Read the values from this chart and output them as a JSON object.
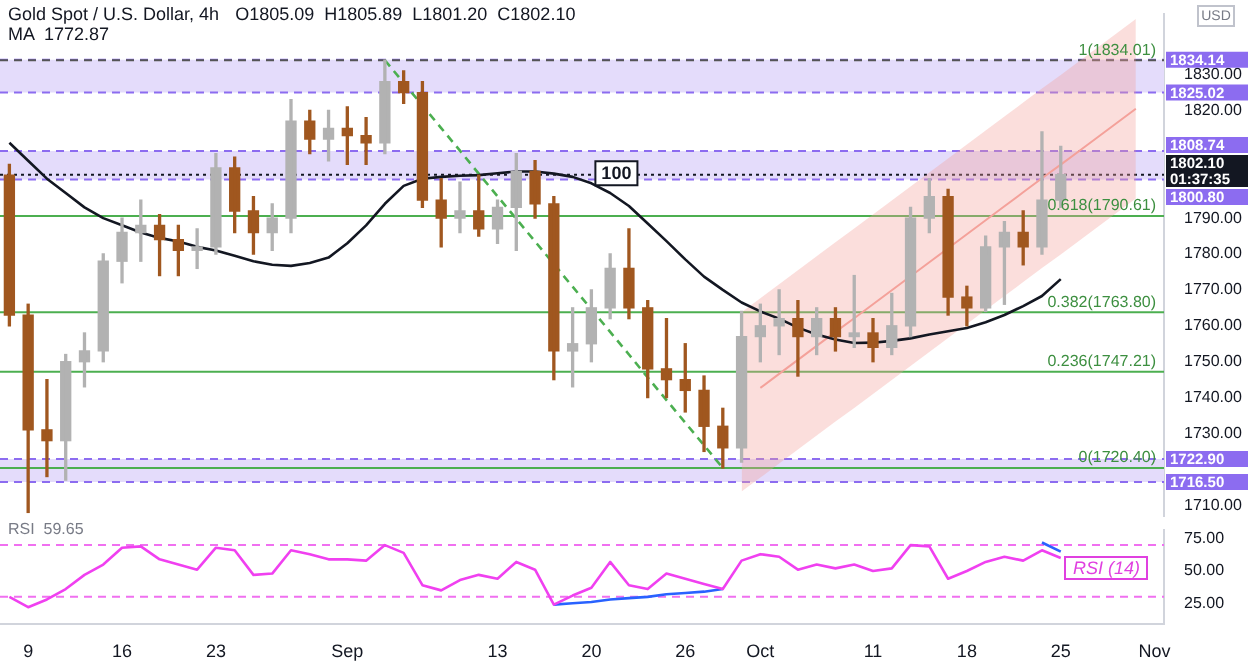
{
  "chart_data": [
    {
      "type": "candlestick",
      "title": "Gold Spot / U.S. Dollar, 4h",
      "subtitle": "O1805.09  H1805.89  L1801.20  C1802.10",
      "ylabel": "USD",
      "annotations": [
        "MA  1772.87",
        {
          "text": "1(1834.01)",
          "y": 1834.01
        },
        {
          "text": "0.618(1790.61)",
          "y": 1790.61
        },
        {
          "text": "0.382(1763.80)",
          "y": 1763.8
        },
        {
          "text": "0.236(1747.21)",
          "y": 1747.21
        },
        {
          "text": "0(1720.40)",
          "y": 1720.4
        }
      ],
      "categories": [
        null,
        "9",
        null,
        null,
        null,
        null,
        "16",
        null,
        null,
        null,
        null,
        "23",
        null,
        null,
        null,
        null,
        null,
        null,
        "Sep",
        null,
        null,
        null,
        null,
        null,
        null,
        null,
        "13",
        null,
        null,
        null,
        null,
        "20",
        null,
        null,
        null,
        null,
        "26",
        null,
        null,
        null,
        "Oct",
        null,
        null,
        null,
        null,
        null,
        "11",
        null,
        null,
        null,
        null,
        "18",
        null,
        null,
        null,
        null,
        "25",
        null,
        null,
        null,
        null,
        "Nov"
      ],
      "ohlc": [
        [
          1802,
          1805,
          1760,
          1763
        ],
        [
          1763,
          1766,
          1708,
          1731
        ],
        [
          1731,
          1745,
          1718,
          1728
        ],
        [
          1728,
          1752,
          1717,
          1750
        ],
        [
          1750,
          1758,
          1743,
          1753
        ],
        [
          1753,
          1780,
          1750,
          1778
        ],
        [
          1778,
          1790,
          1772,
          1786
        ],
        [
          1786,
          1795,
          1778,
          1788
        ],
        [
          1788,
          1791,
          1774,
          1784
        ],
        [
          1784,
          1788,
          1774,
          1781
        ],
        [
          1781,
          1787,
          1776,
          1782
        ],
        [
          1782,
          1808,
          1780,
          1804
        ],
        [
          1804,
          1807,
          1786,
          1792
        ],
        [
          1792,
          1796,
          1780,
          1786
        ],
        [
          1786,
          1794,
          1781,
          1790
        ],
        [
          1790,
          1823,
          1786,
          1817
        ],
        [
          1817,
          1820,
          1808,
          1812
        ],
        [
          1812,
          1820,
          1806,
          1815
        ],
        [
          1815,
          1821,
          1805,
          1813
        ],
        [
          1813,
          1818,
          1805,
          1811
        ],
        [
          1811,
          1834,
          1808,
          1828
        ],
        [
          1828,
          1831,
          1822,
          1825
        ],
        [
          1825,
          1828,
          1793,
          1795
        ],
        [
          1795,
          1801,
          1782,
          1790
        ],
        [
          1790,
          1800,
          1786,
          1792
        ],
        [
          1792,
          1802,
          1785,
          1787
        ],
        [
          1787,
          1795,
          1783,
          1793
        ],
        [
          1793,
          1808,
          1781,
          1803
        ],
        [
          1803,
          1806,
          1790,
          1794
        ],
        [
          1794,
          1796,
          1745,
          1753
        ],
        [
          1753,
          1765,
          1743,
          1755
        ],
        [
          1755,
          1770,
          1750,
          1765
        ],
        [
          1765,
          1780,
          1762,
          1776
        ],
        [
          1776,
          1787,
          1762,
          1765
        ],
        [
          1765,
          1767,
          1740,
          1748
        ],
        [
          1748,
          1762,
          1740,
          1745
        ],
        [
          1745,
          1755,
          1736,
          1742
        ],
        [
          1742,
          1746,
          1725,
          1732
        ],
        [
          1732,
          1737,
          1720.4,
          1726
        ],
        [
          1726,
          1764,
          1722,
          1757
        ],
        [
          1757,
          1766,
          1750,
          1760
        ],
        [
          1760,
          1770,
          1752,
          1762
        ],
        [
          1762,
          1767,
          1746,
          1757
        ],
        [
          1757,
          1765,
          1752,
          1762
        ],
        [
          1762,
          1765,
          1753,
          1757
        ],
        [
          1757,
          1774,
          1754,
          1758
        ],
        [
          1758,
          1762,
          1750,
          1754
        ],
        [
          1754,
          1769,
          1752,
          1760
        ],
        [
          1760,
          1793,
          1757,
          1790
        ],
        [
          1790,
          1801,
          1786,
          1796
        ],
        [
          1796,
          1798,
          1763,
          1768
        ],
        [
          1768,
          1771,
          1760,
          1765
        ],
        [
          1765,
          1785,
          1764,
          1782
        ],
        [
          1782,
          1789,
          1766,
          1786
        ],
        [
          1786,
          1792,
          1777,
          1782
        ],
        [
          1782,
          1814,
          1780,
          1795
        ],
        [
          1795,
          1810,
          1793,
          1802.1
        ],
        null,
        null,
        null,
        null,
        null
      ],
      "colors": [
        "#a0571f",
        "#a0571f",
        "#a0571f",
        "#b2b2b2",
        "#b2b2b2",
        "#b2b2b2",
        "#b2b2b2",
        "#b2b2b2",
        "#a0571f",
        "#a0571f",
        "#b2b2b2",
        "#b2b2b2",
        "#a0571f",
        "#a0571f",
        "#b2b2b2",
        "#b2b2b2",
        "#a0571f",
        "#b2b2b2",
        "#a0571f",
        "#a0571f",
        "#b2b2b2",
        "#a0571f",
        "#a0571f",
        "#a0571f",
        "#b2b2b2",
        "#a0571f",
        "#b2b2b2",
        "#b2b2b2",
        "#a0571f",
        "#a0571f",
        "#b2b2b2",
        "#b2b2b2",
        "#b2b2b2",
        "#a0571f",
        "#a0571f",
        "#a0571f",
        "#a0571f",
        "#a0571f",
        "#a0571f",
        "#b2b2b2",
        "#b2b2b2",
        "#b2b2b2",
        "#a0571f",
        "#b2b2b2",
        "#a0571f",
        "#b2b2b2",
        "#a0571f",
        "#b2b2b2",
        "#b2b2b2",
        "#b2b2b2",
        "#a0571f",
        "#a0571f",
        "#b2b2b2",
        "#b2b2b2",
        "#a0571f",
        "#b2b2b2",
        "#b2b2b2",
        null,
        null,
        null,
        null,
        null
      ],
      "series": [
        {
          "type": "line",
          "name": "100",
          "color": "#131722",
          "values": [
            1811,
            1806,
            1801,
            1797,
            1793,
            1790,
            1788,
            1786,
            1784.5,
            1783.5,
            1782,
            1781,
            1779.5,
            1778,
            1777,
            1776.7,
            1777.5,
            1779,
            1783,
            1788,
            1794,
            1799,
            1801,
            1801.5,
            1801.8,
            1802,
            1802.5,
            1803,
            1803,
            1802.4,
            1801.5,
            1799.7,
            1797,
            1793.4,
            1788.5,
            1783.6,
            1778.5,
            1773.7,
            1770,
            1766.5,
            1764,
            1762,
            1759.5,
            1757.6,
            1756.2,
            1755.2,
            1755.3,
            1755.8,
            1756.5,
            1757.6,
            1758.5,
            1759.4,
            1761,
            1763,
            1765.5,
            1768.3,
            1773,
            null,
            null,
            null,
            null,
            null
          ]
        },
        {
          "type": "line",
          "color": "#4caf50",
          "line_style": "dashed",
          "values": [
            null,
            null,
            null,
            null,
            null,
            null,
            null,
            null,
            null,
            null,
            null,
            null,
            null,
            null,
            null,
            null,
            null,
            null,
            null,
            null,
            1834,
            1827.7,
            1821.4,
            1815.1,
            1808.8,
            1802.4,
            1796.1,
            1789.8,
            1783.5,
            1777.2,
            1770.9,
            1764.6,
            1758.3,
            1752,
            1745.6,
            1739.3,
            1733,
            1726.7,
            1720.4,
            null,
            null,
            null,
            null,
            null,
            null,
            null,
            null,
            null,
            null,
            null,
            null,
            null,
            null,
            null,
            null,
            null,
            null,
            null,
            null,
            null,
            null,
            null
          ]
        },
        {
          "type": "line",
          "color": "#f4a19a",
          "values": [
            null,
            null,
            null,
            null,
            null,
            null,
            null,
            null,
            null,
            null,
            null,
            null,
            null,
            null,
            null,
            null,
            null,
            null,
            null,
            null,
            null,
            null,
            null,
            null,
            null,
            null,
            null,
            null,
            null,
            null,
            null,
            null,
            null,
            null,
            null,
            null,
            null,
            null,
            null,
            null,
            1742.7,
            1746.6,
            1750.5,
            1754.4,
            1758.3,
            1762.1,
            1766,
            1769.9,
            1773.8,
            1777.7,
            1781.6,
            1785.5,
            1789.4,
            1793.3,
            1797.2,
            1801.1,
            1804.9,
            1808.8,
            1812.7,
            1816.6,
            1820.5,
            null
          ],
          "lower": [
            null,
            null,
            null,
            null,
            null,
            null,
            null,
            null,
            null,
            null,
            null,
            null,
            null,
            null,
            null,
            null,
            null,
            null,
            null,
            null,
            null,
            null,
            null,
            null,
            null,
            null,
            null,
            null,
            null,
            null,
            null,
            null,
            null,
            null,
            null,
            null,
            null,
            null,
            null,
            1713.8,
            1717.7,
            1721.6,
            1725.5,
            1729.4,
            1733.3,
            1737.1,
            1741,
            1744.9,
            1748.8,
            1752.7,
            1756.6,
            1760.5,
            1764.4,
            1768.3,
            1772.2,
            1776.1,
            1779.9,
            1783.8,
            1787.7,
            1791.6,
            1795.5,
            null
          ],
          "upper": [
            null,
            null,
            null,
            null,
            null,
            null,
            null,
            null,
            null,
            null,
            null,
            null,
            null,
            null,
            null,
            null,
            null,
            null,
            null,
            null,
            null,
            null,
            null,
            null,
            null,
            null,
            null,
            null,
            null,
            null,
            null,
            null,
            null,
            null,
            null,
            null,
            null,
            null,
            null,
            1763.8,
            1767.7,
            1771.6,
            1775.5,
            1779.4,
            1783.3,
            1787.1,
            1791,
            1794.9,
            1798.8,
            1802.7,
            1806.6,
            1810.5,
            1814.4,
            1818.3,
            1822.2,
            1826.1,
            1829.9,
            1833.8,
            1837.7,
            1841.6,
            1845.5,
            null
          ]
        }
      ],
      "ylim": [
        1707,
        1847
      ],
      "yticks": [
        {
          "value": 1710,
          "label": "1710.00"
        },
        {
          "value": 1730,
          "label": "1730.00"
        },
        {
          "value": 1740,
          "label": "1740.00"
        },
        {
          "value": 1750,
          "label": "1750.00"
        },
        {
          "value": 1760,
          "label": "1760.00"
        },
        {
          "value": 1770,
          "label": "1770.00"
        },
        {
          "value": 1780,
          "label": "1780.00"
        },
        {
          "value": 1790,
          "label": "1790.00"
        },
        {
          "value": 1820,
          "label": "1820.00"
        },
        {
          "value": 1830,
          "label": "1830.00"
        }
      ],
      "bands": [
        {
          "axis": "y",
          "from": 1825.02,
          "to": 1834.14,
          "color": "#e4dcfb"
        },
        {
          "axis": "y",
          "from": 1800.8,
          "to": 1808.74,
          "color": "#e4dcfb"
        },
        {
          "axis": "y",
          "from": 1716.5,
          "to": 1722.9,
          "color": "#e4dcfb"
        }
      ],
      "ref_lines": [
        {
          "axis": "y",
          "value": 1834.14,
          "label": "1834.14",
          "color": "#8c6cf0",
          "line_style": "dashed"
        },
        {
          "axis": "y",
          "value": 1825.02,
          "label": "1825.02",
          "color": "#8c6cf0",
          "line_style": "dashed"
        },
        {
          "axis": "y",
          "value": 1808.74,
          "label": "1808.74",
          "color": "#8c6cf0",
          "line_style": "dashed"
        },
        {
          "axis": "y",
          "value": 1800.8,
          "label": "1800.80",
          "color": "#8c6cf0",
          "line_style": "dashed"
        },
        {
          "axis": "y",
          "value": 1722.9,
          "label": "1722.90",
          "color": "#8c6cf0",
          "line_style": "dashed"
        },
        {
          "axis": "y",
          "value": 1716.5,
          "label": "1716.50",
          "color": "#8c6cf0",
          "line_style": "dashed"
        },
        {
          "axis": "y",
          "value": 1802.1,
          "label": "1802.10\n01:37:35",
          "color": "#131722",
          "line_style": "dotted"
        },
        {
          "axis": "y",
          "value": 1834.01,
          "color": "#555555",
          "line_style": "dashed"
        },
        {
          "axis": "y",
          "value": 1790.61,
          "color": "#4caf50",
          "line_style": "solid"
        },
        {
          "axis": "y",
          "value": 1763.8,
          "color": "#4caf50",
          "line_style": "solid"
        },
        {
          "axis": "y",
          "value": 1747.21,
          "color": "#4caf50",
          "line_style": "solid"
        },
        {
          "axis": "y",
          "value": 1720.4,
          "color": "#4caf50",
          "line_style": "solid"
        }
      ],
      "marker": "none"
    },
    {
      "type": "line",
      "title": "RSI  59.65",
      "annotations": [
        "RSI (14)"
      ],
      "categories": [
        null,
        null,
        null,
        null,
        null,
        null,
        null,
        null,
        null,
        null,
        null,
        null,
        null,
        null,
        null,
        null,
        null,
        null,
        null,
        null,
        null,
        null,
        null,
        null,
        null,
        null,
        null,
        null,
        null,
        null,
        null,
        null,
        null,
        null,
        null,
        null,
        null,
        null,
        null,
        null,
        null,
        null,
        null,
        null,
        null,
        null,
        null,
        null,
        null,
        null,
        null,
        null,
        null,
        null,
        null,
        null,
        null,
        null,
        null,
        null,
        null,
        null
      ],
      "series": [
        {
          "color": "#f040f0",
          "values": [
            30,
            22,
            28,
            36,
            47,
            55,
            68,
            69,
            59,
            55,
            51,
            68,
            66,
            47,
            48,
            66,
            63,
            59,
            59,
            58,
            70,
            64,
            39,
            35,
            43,
            47,
            44,
            57,
            51,
            24,
            31,
            37,
            57,
            39,
            36,
            48,
            44,
            40,
            36,
            58,
            63,
            61,
            51,
            55,
            52,
            55,
            50,
            52,
            70,
            69,
            44,
            50,
            57,
            61,
            58,
            66,
            60,
            null,
            null,
            null,
            null,
            null
          ]
        },
        {
          "type": "line",
          "color": "#2962ff",
          "values": [
            null,
            null,
            null,
            null,
            null,
            null,
            null,
            null,
            null,
            null,
            null,
            null,
            null,
            null,
            null,
            null,
            null,
            null,
            null,
            null,
            null,
            null,
            null,
            null,
            null,
            null,
            null,
            null,
            null,
            24,
            25,
            26,
            28,
            29,
            30,
            32,
            33,
            34,
            36,
            null,
            null,
            null,
            null,
            null,
            null,
            null,
            null,
            null,
            null,
            null,
            null,
            null,
            null,
            null,
            null,
            null,
            null,
            null,
            null,
            null,
            null,
            null
          ]
        },
        {
          "type": "line",
          "color": "#2962ff",
          "values": [
            null,
            null,
            null,
            null,
            null,
            null,
            null,
            null,
            null,
            null,
            null,
            null,
            null,
            null,
            null,
            null,
            null,
            null,
            null,
            null,
            null,
            null,
            null,
            null,
            null,
            null,
            null,
            null,
            null,
            null,
            null,
            null,
            null,
            null,
            null,
            null,
            null,
            null,
            null,
            null,
            null,
            null,
            null,
            null,
            null,
            null,
            null,
            null,
            null,
            null,
            null,
            null,
            null,
            null,
            null,
            72,
            65,
            null,
            null,
            null,
            null,
            null
          ]
        }
      ],
      "ylim": [
        9,
        82
      ],
      "yticks": [
        {
          "value": 25,
          "label": "25.00"
        },
        {
          "value": 50,
          "label": "50.00"
        },
        {
          "value": 75,
          "label": "75.00"
        }
      ],
      "ref_lines": [
        {
          "axis": "y",
          "value": 70,
          "color": "#f070f0",
          "line_style": "dashed"
        },
        {
          "axis": "y",
          "value": 30,
          "color": "#f070f0",
          "line_style": "dashed"
        }
      ],
      "tick_labels": "y",
      "marker": "none"
    }
  ]
}
